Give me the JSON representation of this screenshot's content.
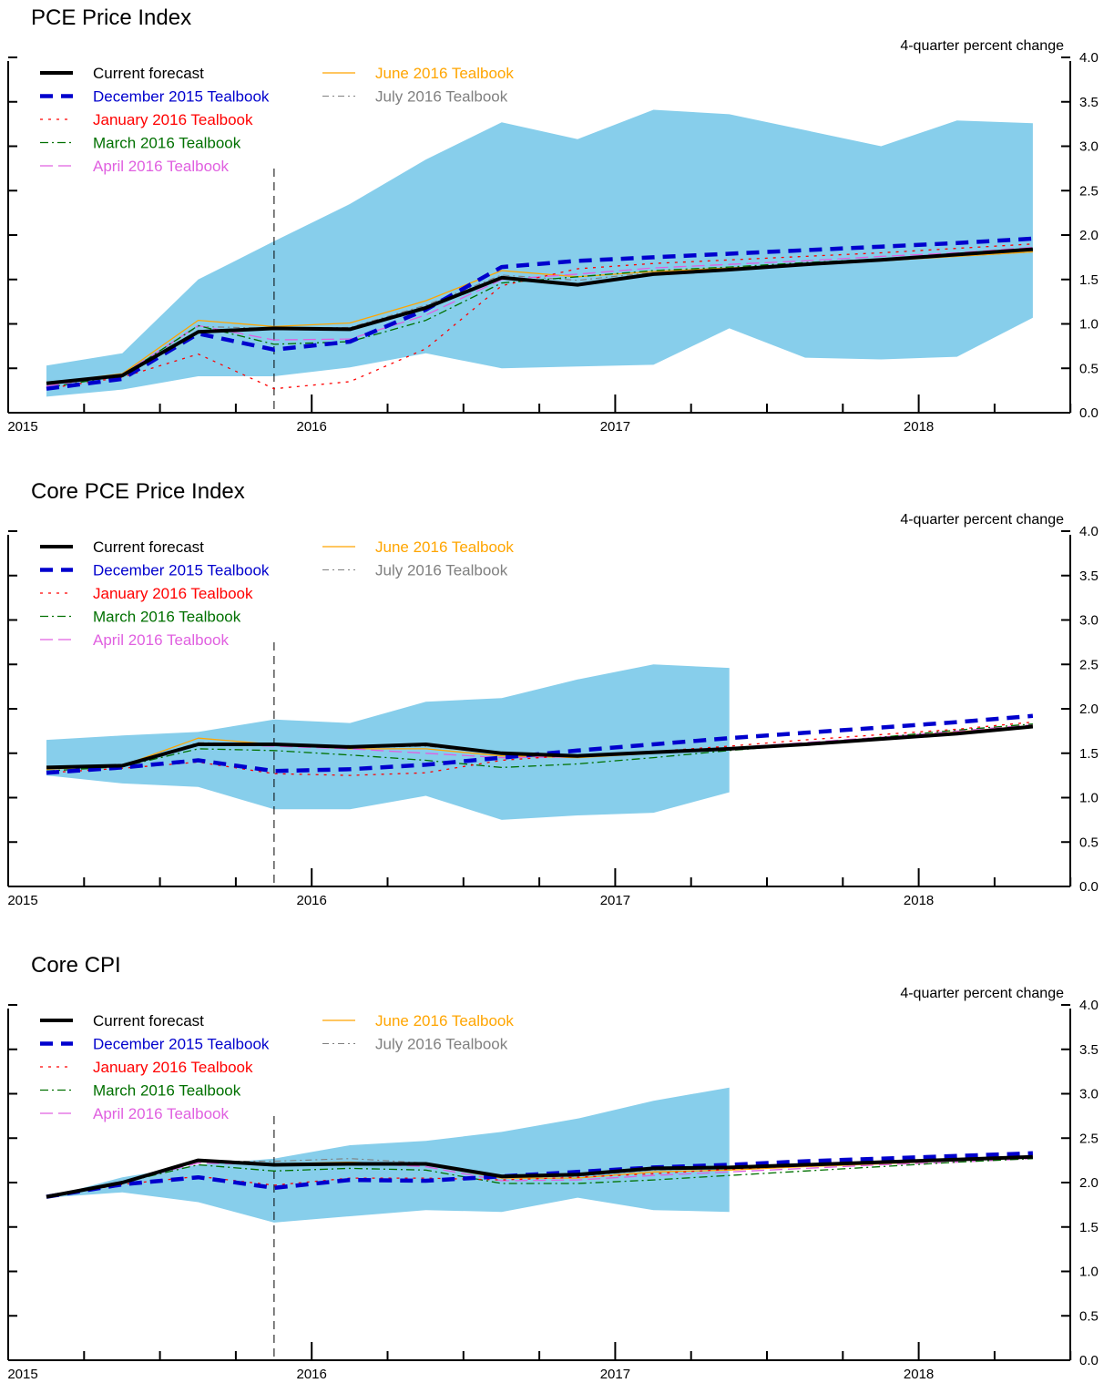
{
  "chart_data": [
    {
      "type": "line",
      "title": "PCE Price Index",
      "ylabel": "4-quarter percent change",
      "ylim": [
        0,
        4
      ],
      "yticks": [
        "0.0",
        "0.5",
        "1.0",
        "1.5",
        "2.0",
        "2.5",
        "3.0",
        "3.5",
        "4.0"
      ],
      "x_axis": {
        "range": [
          "2015Q1",
          "2018Q3"
        ],
        "year_labels": [
          "2015",
          "2016",
          "2017",
          "2018"
        ]
      },
      "vertical_marker": "2015Q4",
      "legend": "top-left",
      "band": {
        "name": "",
        "color": "#87CEEB",
        "x": [
          "2015Q1",
          "2015Q2",
          "2015Q3",
          "2015Q4",
          "2016Q1",
          "2016Q2",
          "2016Q3",
          "2016Q4",
          "2017Q1",
          "2017Q2",
          "2017Q3",
          "2017Q4",
          "2018Q1",
          "2018Q2"
        ],
        "upper": [
          0.53,
          0.67,
          1.5,
          1.93,
          2.35,
          2.85,
          3.27,
          3.08,
          3.41,
          3.36,
          3.18,
          3.0,
          3.29,
          3.26
        ],
        "lower": [
          0.18,
          0.26,
          0.41,
          0.41,
          0.51,
          0.67,
          0.5,
          0.52,
          0.54,
          0.95,
          0.62,
          0.6,
          0.63,
          1.07
        ]
      },
      "series": [
        {
          "name": "Current forecast",
          "color": "#000000",
          "style": "solid-thick",
          "x": [
            "2015Q1",
            "2015Q2",
            "2015Q3",
            "2015Q4",
            "2016Q1",
            "2016Q2",
            "2016Q3",
            "2016Q4",
            "2017Q1",
            "2017Q2",
            "2017Q3",
            "2017Q4",
            "2018Q1",
            "2018Q2"
          ],
          "values": [
            0.33,
            0.42,
            0.91,
            0.95,
            0.94,
            1.18,
            1.52,
            1.44,
            1.56,
            1.61,
            1.67,
            1.72,
            1.78,
            1.84
          ]
        },
        {
          "name": "December 2015 Tealbook",
          "color": "#0000CD",
          "style": "dash-thick",
          "x": [
            "2015Q1",
            "2015Q2",
            "2015Q3",
            "2015Q4",
            "2016Q1",
            "2016Q2",
            "2016Q3",
            "2016Q4",
            "2017Q1",
            "2017Q2",
            "2017Q3",
            "2017Q4",
            "2018Q1",
            "2018Q2"
          ],
          "values": [
            0.27,
            0.38,
            0.89,
            0.71,
            0.8,
            1.16,
            1.64,
            1.71,
            1.75,
            1.79,
            1.83,
            1.87,
            1.91,
            1.96
          ]
        },
        {
          "name": "January 2016 Tealbook",
          "color": "#FF0000",
          "style": "dotted",
          "x": [
            "2015Q1",
            "2015Q2",
            "2015Q3",
            "2015Q4",
            "2016Q1",
            "2016Q2",
            "2016Q3",
            "2016Q4",
            "2017Q1",
            "2017Q2",
            "2017Q3",
            "2017Q4",
            "2018Q1",
            "2018Q2"
          ],
          "values": [
            0.27,
            0.4,
            0.66,
            0.27,
            0.35,
            0.72,
            1.43,
            1.62,
            1.68,
            1.72,
            1.76,
            1.8,
            1.85,
            1.9
          ]
        },
        {
          "name": "March 2016 Tealbook",
          "color": "#007000",
          "style": "dashdot",
          "x": [
            "2015Q1",
            "2015Q2",
            "2015Q3",
            "2015Q4",
            "2016Q1",
            "2016Q2",
            "2016Q3",
            "2016Q4",
            "2017Q1",
            "2017Q2",
            "2017Q3",
            "2017Q4",
            "2018Q1",
            "2018Q2"
          ],
          "values": [
            0.28,
            0.42,
            0.98,
            0.77,
            0.8,
            1.04,
            1.46,
            1.53,
            1.6,
            1.64,
            1.69,
            1.73,
            1.78,
            1.83
          ]
        },
        {
          "name": "April 2016 Tealbook",
          "color": "#E060E0",
          "style": "longdash",
          "x": [
            "2015Q1",
            "2015Q2",
            "2015Q3",
            "2015Q4",
            "2016Q1",
            "2016Q2",
            "2016Q3",
            "2016Q4",
            "2017Q1",
            "2017Q2",
            "2017Q3",
            "2017Q4",
            "2018Q1",
            "2018Q2"
          ],
          "values": [
            0.3,
            0.43,
            0.98,
            0.82,
            0.83,
            1.1,
            1.5,
            1.56,
            1.63,
            1.67,
            1.71,
            1.76,
            1.8,
            1.86
          ]
        },
        {
          "name": "June 2016 Tealbook",
          "color": "#FFA500",
          "style": "solid-thin",
          "x": [
            "2015Q1",
            "2015Q2",
            "2015Q3",
            "2015Q4",
            "2016Q1",
            "2016Q2",
            "2016Q3",
            "2016Q4",
            "2017Q1",
            "2017Q2",
            "2017Q3",
            "2017Q4",
            "2018Q1",
            "2018Q2"
          ],
          "values": [
            0.33,
            0.44,
            1.04,
            0.97,
            1.01,
            1.26,
            1.6,
            1.53,
            1.59,
            1.63,
            1.67,
            1.71,
            1.76,
            1.81
          ]
        },
        {
          "name": "July 2016 Tealbook",
          "color": "#808080",
          "style": "dashdot-thin",
          "x": [
            "2015Q1",
            "2015Q2",
            "2015Q3",
            "2015Q4",
            "2016Q1",
            "2016Q2",
            "2016Q3",
            "2016Q4",
            "2017Q1",
            "2017Q2",
            "2017Q3",
            "2017Q4",
            "2018Q1",
            "2018Q2"
          ],
          "values": [
            0.33,
            0.43,
            0.97,
            0.95,
            0.96,
            1.21,
            1.55,
            1.49,
            1.58,
            1.62,
            1.67,
            1.71,
            1.76,
            1.81
          ]
        }
      ]
    },
    {
      "type": "line",
      "title": "Core PCE Price Index",
      "ylabel": "4-quarter percent change",
      "ylim": [
        0,
        4
      ],
      "yticks": [
        "0.0",
        "0.5",
        "1.0",
        "1.5",
        "2.0",
        "2.5",
        "3.0",
        "3.5",
        "4.0"
      ],
      "x_axis": {
        "range": [
          "2015Q1",
          "2018Q3"
        ],
        "year_labels": [
          "2015",
          "2016",
          "2017",
          "2018"
        ]
      },
      "vertical_marker": "2015Q4",
      "legend": "top-left",
      "band": {
        "name": "",
        "color": "#87CEEB",
        "x": [
          "2015Q1",
          "2015Q2",
          "2015Q3",
          "2015Q4",
          "2016Q1",
          "2016Q2",
          "2016Q3",
          "2016Q4",
          "2017Q1",
          "2017Q2"
        ],
        "upper": [
          1.65,
          1.7,
          1.74,
          1.88,
          1.84,
          2.08,
          2.12,
          2.33,
          2.5,
          2.46
        ],
        "lower": [
          1.25,
          1.16,
          1.12,
          0.87,
          0.87,
          1.02,
          0.75,
          0.8,
          0.83,
          1.06
        ]
      },
      "series": [
        {
          "name": "Current forecast",
          "color": "#000000",
          "style": "solid-thick",
          "x": [
            "2015Q1",
            "2015Q2",
            "2015Q3",
            "2015Q4",
            "2016Q1",
            "2016Q2",
            "2016Q3",
            "2016Q4",
            "2017Q1",
            "2017Q2",
            "2017Q3",
            "2017Q4",
            "2018Q1",
            "2018Q2"
          ],
          "values": [
            1.34,
            1.36,
            1.6,
            1.6,
            1.57,
            1.6,
            1.5,
            1.47,
            1.51,
            1.55,
            1.6,
            1.66,
            1.72,
            1.8
          ]
        },
        {
          "name": "December 2015 Tealbook",
          "color": "#0000CD",
          "style": "dash-thick",
          "x": [
            "2015Q1",
            "2015Q2",
            "2015Q3",
            "2015Q4",
            "2016Q1",
            "2016Q2",
            "2016Q3",
            "2016Q4",
            "2017Q1",
            "2017Q2",
            "2017Q3",
            "2017Q4",
            "2018Q1",
            "2018Q2"
          ],
          "values": [
            1.28,
            1.34,
            1.42,
            1.3,
            1.32,
            1.37,
            1.45,
            1.53,
            1.6,
            1.67,
            1.73,
            1.79,
            1.85,
            1.92
          ]
        },
        {
          "name": "January 2016 Tealbook",
          "color": "#FF0000",
          "style": "dotted",
          "x": [
            "2015Q1",
            "2015Q2",
            "2015Q3",
            "2015Q4",
            "2016Q1",
            "2016Q2",
            "2016Q3",
            "2016Q4",
            "2017Q1",
            "2017Q2",
            "2017Q3",
            "2017Q4",
            "2018Q1",
            "2018Q2"
          ],
          "values": [
            1.28,
            1.33,
            1.4,
            1.27,
            1.25,
            1.28,
            1.42,
            1.48,
            1.52,
            1.58,
            1.65,
            1.71,
            1.77,
            1.85
          ]
        },
        {
          "name": "March 2016 Tealbook",
          "color": "#007000",
          "style": "dashdot",
          "x": [
            "2015Q1",
            "2015Q2",
            "2015Q3",
            "2015Q4",
            "2016Q1",
            "2016Q2",
            "2016Q3",
            "2016Q4",
            "2017Q1",
            "2017Q2",
            "2017Q3",
            "2017Q4",
            "2018Q1",
            "2018Q2"
          ],
          "values": [
            1.3,
            1.35,
            1.55,
            1.53,
            1.48,
            1.42,
            1.34,
            1.38,
            1.45,
            1.53,
            1.6,
            1.68,
            1.76,
            1.83
          ]
        },
        {
          "name": "April 2016 Tealbook",
          "color": "#E060E0",
          "style": "longdash",
          "x": [
            "2015Q1",
            "2015Q2",
            "2015Q3",
            "2015Q4",
            "2016Q1",
            "2016Q2",
            "2016Q3",
            "2016Q4",
            "2017Q1",
            "2017Q2",
            "2017Q3",
            "2017Q4",
            "2018Q1",
            "2018Q2"
          ],
          "values": [
            1.3,
            1.35,
            1.6,
            1.58,
            1.55,
            1.5,
            1.45,
            1.46,
            1.5,
            1.56,
            1.62,
            1.68,
            1.75,
            1.82
          ]
        },
        {
          "name": "June 2016 Tealbook",
          "color": "#FFA500",
          "style": "solid-thin",
          "x": [
            "2015Q1",
            "2015Q2",
            "2015Q3",
            "2015Q4",
            "2016Q1",
            "2016Q2",
            "2016Q3",
            "2016Q4",
            "2017Q1",
            "2017Q2",
            "2017Q3",
            "2017Q4",
            "2018Q1",
            "2018Q2"
          ],
          "values": [
            1.32,
            1.36,
            1.67,
            1.6,
            1.55,
            1.55,
            1.47,
            1.45,
            1.5,
            1.55,
            1.61,
            1.67,
            1.74,
            1.81
          ]
        },
        {
          "name": "July 2016 Tealbook",
          "color": "#808080",
          "style": "dashdot-thin",
          "x": [
            "2015Q1",
            "2015Q2",
            "2015Q3",
            "2015Q4",
            "2016Q1",
            "2016Q2",
            "2016Q3",
            "2016Q4",
            "2017Q1",
            "2017Q2",
            "2017Q3",
            "2017Q4",
            "2018Q1",
            "2018Q2"
          ],
          "values": [
            1.33,
            1.36,
            1.62,
            1.6,
            1.56,
            1.58,
            1.49,
            1.46,
            1.5,
            1.55,
            1.61,
            1.67,
            1.73,
            1.8
          ]
        }
      ]
    },
    {
      "type": "line",
      "title": "Core CPI",
      "ylabel": "4-quarter percent change",
      "ylim": [
        0,
        4
      ],
      "yticks": [
        "0.0",
        "0.5",
        "1.0",
        "1.5",
        "2.0",
        "2.5",
        "3.0",
        "3.5",
        "4.0"
      ],
      "x_axis": {
        "range": [
          "2015Q1",
          "2018Q3"
        ],
        "year_labels": [
          "2015",
          "2016",
          "2017",
          "2018"
        ]
      },
      "vertical_marker": "2015Q4",
      "legend": "top-left",
      "band": {
        "name": "",
        "color": "#87CEEB",
        "x": [
          "2015Q1",
          "2015Q2",
          "2015Q3",
          "2015Q4",
          "2016Q1",
          "2016Q2",
          "2016Q3",
          "2016Q4",
          "2017Q1",
          "2017Q2"
        ],
        "upper": [
          1.83,
          2.06,
          2.2,
          2.27,
          2.42,
          2.47,
          2.57,
          2.72,
          2.92,
          3.07
        ],
        "lower": [
          1.83,
          1.89,
          1.78,
          1.55,
          1.62,
          1.69,
          1.67,
          1.83,
          1.69,
          1.67
        ]
      },
      "series": [
        {
          "name": "Current forecast",
          "color": "#000000",
          "style": "solid-thick",
          "x": [
            "2015Q1",
            "2015Q2",
            "2015Q3",
            "2015Q4",
            "2016Q1",
            "2016Q2",
            "2016Q3",
            "2016Q4",
            "2017Q1",
            "2017Q2",
            "2017Q3",
            "2017Q4",
            "2018Q1",
            "2018Q2"
          ],
          "values": [
            1.84,
            2.0,
            2.25,
            2.2,
            2.21,
            2.21,
            2.07,
            2.09,
            2.16,
            2.17,
            2.2,
            2.23,
            2.26,
            2.29
          ]
        },
        {
          "name": "December 2015 Tealbook",
          "color": "#0000CD",
          "style": "dash-thick",
          "x": [
            "2015Q1",
            "2015Q2",
            "2015Q3",
            "2015Q4",
            "2016Q1",
            "2016Q2",
            "2016Q3",
            "2016Q4",
            "2017Q1",
            "2017Q2",
            "2017Q3",
            "2017Q4",
            "2018Q1",
            "2018Q2"
          ],
          "values": [
            1.84,
            1.98,
            2.06,
            1.94,
            2.03,
            2.02,
            2.07,
            2.12,
            2.17,
            2.2,
            2.24,
            2.27,
            2.3,
            2.33
          ]
        },
        {
          "name": "January 2016 Tealbook",
          "color": "#FF0000",
          "style": "dotted",
          "x": [
            "2015Q1",
            "2015Q2",
            "2015Q3",
            "2015Q4",
            "2016Q1",
            "2016Q2",
            "2016Q3",
            "2016Q4",
            "2017Q1",
            "2017Q2",
            "2017Q3",
            "2017Q4",
            "2018Q1",
            "2018Q2"
          ],
          "values": [
            1.84,
            1.98,
            2.07,
            1.97,
            2.05,
            2.05,
            2.03,
            2.06,
            2.1,
            2.15,
            2.19,
            2.23,
            2.26,
            2.3
          ]
        },
        {
          "name": "March 2016 Tealbook",
          "color": "#007000",
          "style": "dashdot",
          "x": [
            "2015Q1",
            "2015Q2",
            "2015Q3",
            "2015Q4",
            "2016Q1",
            "2016Q2",
            "2016Q3",
            "2016Q4",
            "2017Q1",
            "2017Q2",
            "2017Q3",
            "2017Q4",
            "2018Q1",
            "2018Q2"
          ],
          "values": [
            1.84,
            2.0,
            2.2,
            2.13,
            2.16,
            2.14,
            1.99,
            1.99,
            2.03,
            2.08,
            2.13,
            2.18,
            2.23,
            2.27
          ]
        },
        {
          "name": "April 2016 Tealbook",
          "color": "#E060E0",
          "style": "longdash",
          "x": [
            "2015Q1",
            "2015Q2",
            "2015Q3",
            "2015Q4",
            "2016Q1",
            "2016Q2",
            "2016Q3",
            "2016Q4",
            "2017Q1",
            "2017Q2",
            "2017Q3",
            "2017Q4",
            "2018Q1",
            "2018Q2"
          ],
          "values": [
            1.84,
            2.0,
            2.22,
            2.2,
            2.22,
            2.18,
            2.02,
            2.03,
            2.08,
            2.12,
            2.16,
            2.2,
            2.23,
            2.27
          ]
        },
        {
          "name": "June 2016 Tealbook",
          "color": "#FFA500",
          "style": "solid-thin",
          "x": [
            "2015Q1",
            "2015Q2",
            "2015Q3",
            "2015Q4",
            "2016Q1",
            "2016Q2",
            "2016Q3",
            "2016Q4",
            "2017Q1",
            "2017Q2",
            "2017Q3",
            "2017Q4",
            "2018Q1",
            "2018Q2"
          ],
          "values": [
            1.84,
            2.0,
            2.24,
            2.21,
            2.23,
            2.2,
            2.05,
            2.05,
            2.12,
            2.14,
            2.18,
            2.21,
            2.25,
            2.28
          ]
        },
        {
          "name": "July 2016 Tealbook",
          "color": "#808080",
          "style": "dashdot-thin",
          "x": [
            "2015Q1",
            "2015Q2",
            "2015Q3",
            "2015Q4",
            "2016Q1",
            "2016Q2",
            "2016Q3",
            "2016Q4",
            "2017Q1",
            "2017Q2",
            "2017Q3",
            "2017Q4",
            "2018Q1",
            "2018Q2"
          ],
          "values": [
            1.84,
            2.0,
            2.24,
            2.24,
            2.27,
            2.22,
            2.06,
            2.07,
            2.14,
            2.16,
            2.19,
            2.22,
            2.26,
            2.29
          ]
        }
      ]
    }
  ]
}
